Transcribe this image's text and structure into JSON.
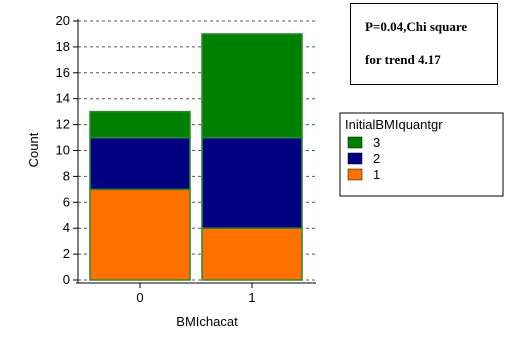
{
  "chart_data": {
    "type": "bar",
    "stacked": true,
    "categories": [
      "0",
      "1"
    ],
    "series": [
      {
        "name": "1",
        "values": [
          7,
          4
        ],
        "color": "#ff7000"
      },
      {
        "name": "2",
        "values": [
          4,
          7
        ],
        "color": "#000080"
      },
      {
        "name": "3",
        "values": [
          2,
          8
        ],
        "color": "#008000"
      }
    ],
    "xlabel": "BMIchacat",
    "ylabel": "Count",
    "ylim": [
      0,
      20
    ],
    "yticks": [
      0,
      2,
      4,
      6,
      8,
      10,
      12,
      14,
      16,
      18,
      20
    ],
    "grid": "horizontal dashed",
    "legend": {
      "title": "InitialBMIquantgr",
      "placement": "right",
      "order": [
        "3",
        "2",
        "1"
      ]
    },
    "annotation": {
      "line1": "P=0.04,Chi square",
      "line2": "for trend 4.17"
    }
  }
}
